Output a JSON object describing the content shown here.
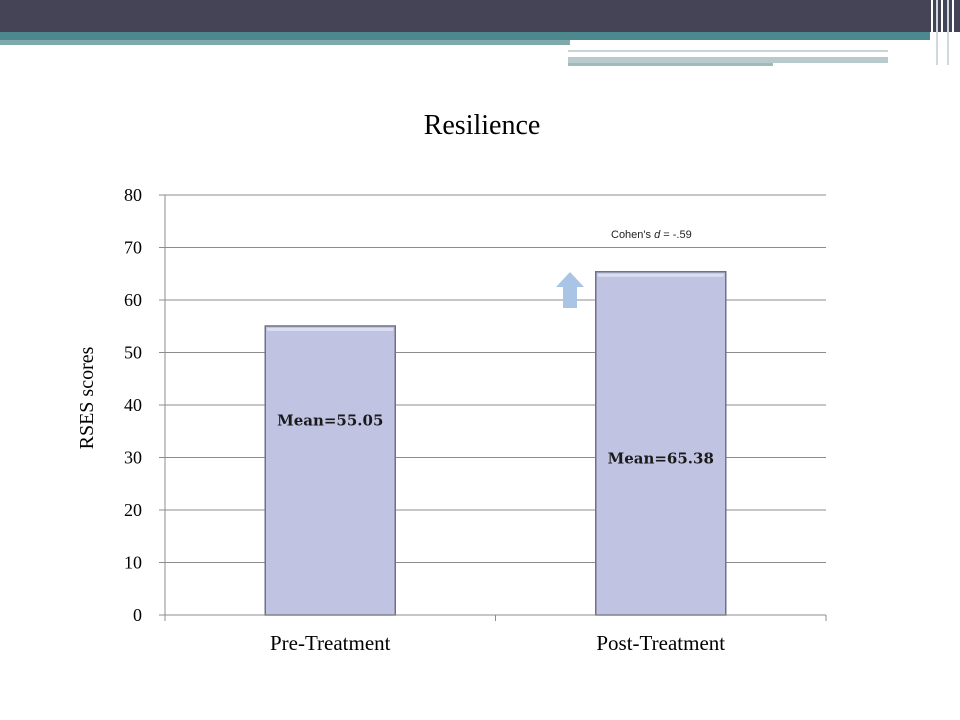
{
  "chart_data": {
    "type": "bar",
    "title": "Resilience",
    "ylabel": "RSES scores",
    "xlabel": "",
    "categories": [
      "Pre-Treatment",
      "Post-Treatment"
    ],
    "values": [
      55.05,
      65.38
    ],
    "data_labels": [
      "Mean=55.05",
      "Mean=65.38"
    ],
    "ylim": [
      0,
      80
    ],
    "yticks": [
      0,
      10,
      20,
      30,
      40,
      50,
      60,
      70,
      80
    ],
    "grid": true,
    "legend": "none",
    "annotation": {
      "prefix": "Cohen's ",
      "italic": "d",
      "suffix": " = -.59"
    },
    "colors": {
      "bar": "#c0c3e2",
      "bar_edge": "#6f7287",
      "arrow": "#a9c4e4",
      "grid": "#8c8c8c"
    }
  },
  "theme": {
    "topbar": "#454457",
    "accent": "#4b898e"
  }
}
